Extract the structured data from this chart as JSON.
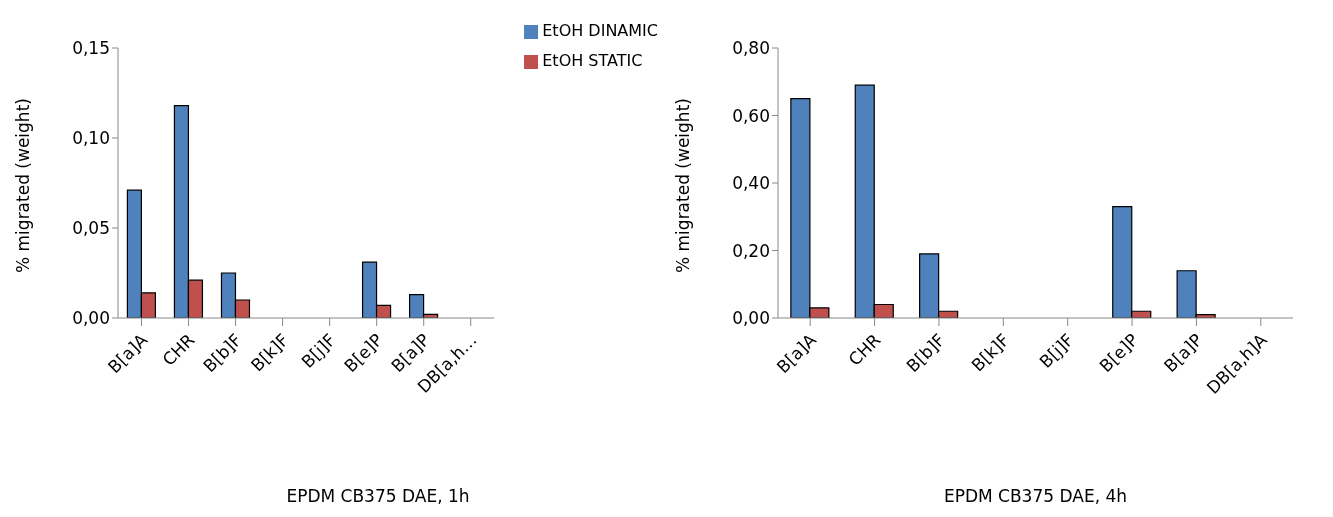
{
  "chart_data": [
    {
      "type": "bar",
      "xlabel": "EPDM CB375 DAE, 1h",
      "ylabel": "% migrated (weight)",
      "categories": [
        "B[a]A",
        "CHR",
        "B[b]F",
        "B[k]F",
        "B[j]F",
        "B[e]P",
        "B[a]P",
        "DB[a,h…"
      ],
      "series": [
        {
          "name": "EtOH  DINAMIC",
          "color": "#4f81bd",
          "values": [
            0.071,
            0.118,
            0.025,
            0,
            0,
            0.031,
            0.013,
            0
          ]
        },
        {
          "name": "EtOH  STATIC",
          "color": "#c0504d",
          "values": [
            0.014,
            0.021,
            0.01,
            0,
            0,
            0.007,
            0.002,
            0
          ]
        }
      ],
      "ylim": [
        0,
        0.15
      ],
      "yticks": [
        {
          "value": 0,
          "label": "0,00"
        },
        {
          "value": 0.05,
          "label": "0,05"
        },
        {
          "value": 0.1,
          "label": "0,10"
        },
        {
          "value": 0.15,
          "label": "0,15"
        }
      ],
      "grid": false,
      "legend": "top right"
    },
    {
      "type": "bar",
      "xlabel": "EPDM CB375 DAE, 4h",
      "ylabel": "% migrated (weight)",
      "categories": [
        "B[a]A",
        "CHR",
        "B[b]F",
        "B[k]F",
        "B[j]F",
        "B[e]P",
        "B[a]P",
        "DB[a,h]A"
      ],
      "series": [
        {
          "color": "#4f81bd",
          "values": [
            0.65,
            0.69,
            0.19,
            0,
            0,
            0.33,
            0.14,
            0
          ]
        },
        {
          "color": "#c0504d",
          "values": [
            0.03,
            0.04,
            0.02,
            0,
            0,
            0.02,
            0.01,
            0
          ]
        }
      ],
      "ylim": [
        0,
        0.8
      ],
      "yticks": [
        {
          "value": 0,
          "label": "0,00"
        },
        {
          "value": 0.2,
          "label": "0,20"
        },
        {
          "value": 0.4,
          "label": "0,40"
        },
        {
          "value": 0.6,
          "label": "0,60"
        },
        {
          "value": 0.8,
          "label": "0,80"
        }
      ],
      "grid": false
    }
  ]
}
